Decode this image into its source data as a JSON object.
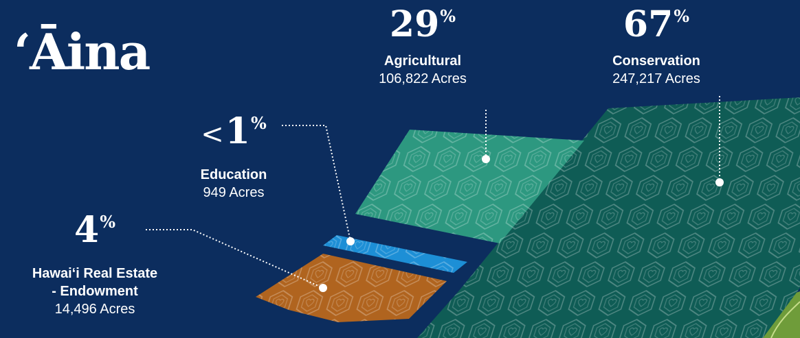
{
  "title": "ʻĀina",
  "chart_data": {
    "type": "area",
    "unit": "Acres",
    "percent_sign": "%",
    "categories": [
      {
        "key": "hre",
        "name_lines": [
          "Hawai‘i Real Estate",
          "- Endowment"
        ],
        "percent": "4",
        "percent_prefix": "",
        "acres": 14496,
        "acres_label": "14,496 Acres",
        "color": "#b0641f"
      },
      {
        "key": "edu",
        "name_lines": [
          "Education"
        ],
        "percent": "1",
        "percent_prefix": "<",
        "acres": 949,
        "acres_label": "949 Acres",
        "color": "#1d8fd6"
      },
      {
        "key": "agr",
        "name_lines": [
          "Agricultural"
        ],
        "percent": "29",
        "percent_prefix": "",
        "acres": 106822,
        "acres_label": "106,822 Acres",
        "color": "#2d9880"
      },
      {
        "key": "con",
        "name_lines": [
          "Conservation"
        ],
        "percent": "67",
        "percent_prefix": "",
        "acres": 247217,
        "acres_label": "247,217 Acres",
        "color": "#0f5c55"
      }
    ]
  }
}
